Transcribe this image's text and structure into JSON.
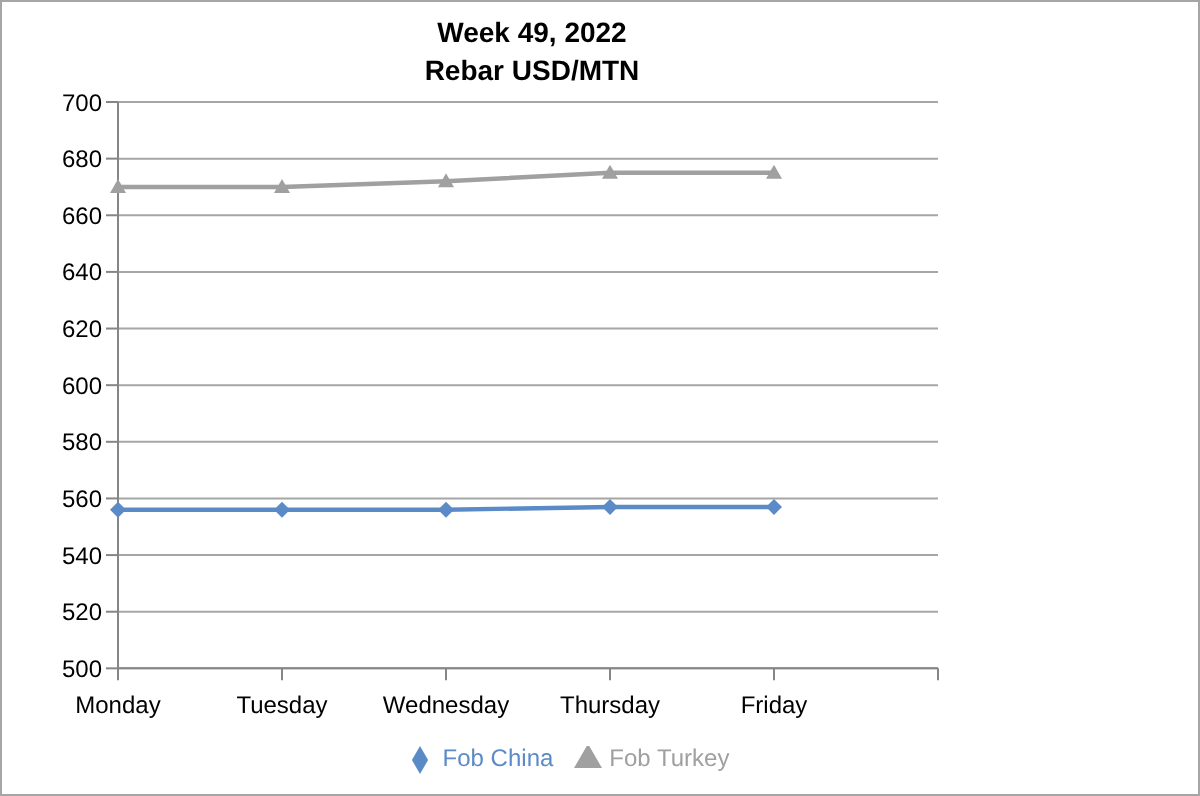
{
  "chart_data": {
    "type": "line",
    "title": "Week 49, 2022",
    "subtitle": "Rebar USD/MTN",
    "categories": [
      "Monday",
      "Tuesday",
      "Wednesday",
      "Thursday",
      "Friday",
      null
    ],
    "series": [
      {
        "name": "Fob China",
        "color": "#5b8bc7",
        "marker": "diamond",
        "values": [
          556,
          556,
          556,
          557,
          557,
          null
        ]
      },
      {
        "name": "Fob Turkey",
        "color": "#a0a0a0",
        "marker": "triangle",
        "values": [
          670,
          670,
          672,
          675,
          675,
          null
        ]
      }
    ],
    "ylim": [
      500,
      700
    ],
    "yticks": [
      500,
      520,
      540,
      560,
      580,
      600,
      620,
      640,
      660,
      680,
      700
    ],
    "grid": "y",
    "legend": "bottom"
  }
}
